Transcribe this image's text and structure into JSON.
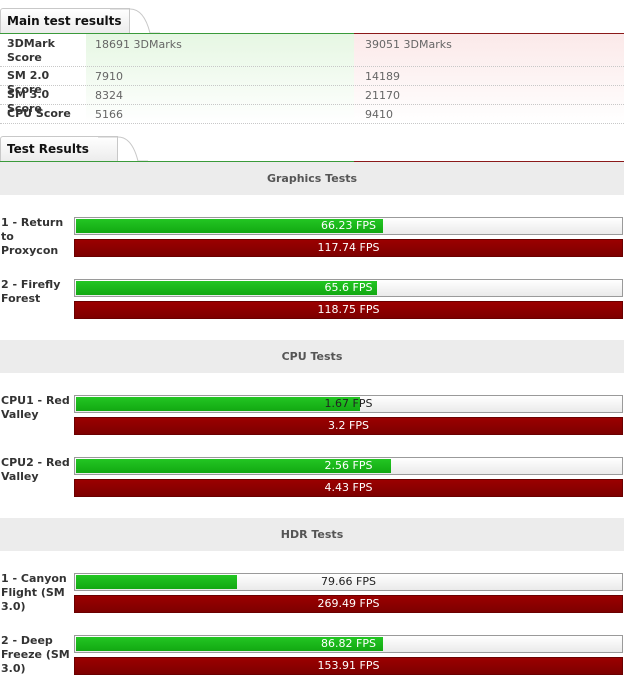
{
  "main": {
    "title": "Main test results",
    "rows": [
      {
        "label": "3DMark Score",
        "label_line1": "3DMark",
        "label_line2": "Score",
        "value_a": "18691 3DMarks",
        "value_b": "39051 3DMarks"
      },
      {
        "label": "SM 2.0 Score",
        "value_a": "7910",
        "value_b": "14189"
      },
      {
        "label": "SM 3.0 Score",
        "value_a": "8324",
        "value_b": "21170"
      },
      {
        "label": "CPU Score",
        "value_a": "5166",
        "value_b": "9410"
      }
    ]
  },
  "results": {
    "title": "Test Results",
    "sections": [
      {
        "name": "Graphics Tests",
        "tests": [
          {
            "label_lines": [
              "1 - Return to",
              "Proxycon"
            ],
            "a_text": "66.23 FPS",
            "a_fraction": 0.5625,
            "b_text": "117.74 FPS"
          },
          {
            "label_lines": [
              "2 - Firefly",
              "Forest"
            ],
            "a_text": "65.6 FPS",
            "a_fraction": 0.5524,
            "b_text": "118.75 FPS"
          }
        ]
      },
      {
        "name": "CPU Tests",
        "tests": [
          {
            "label_lines": [
              "CPU1 - Red",
              "Valley"
            ],
            "a_text": "1.67 FPS",
            "a_fraction": 0.5219,
            "b_text": "3.2 FPS"
          },
          {
            "label_lines": [
              "CPU2 - Red",
              "Valley"
            ],
            "a_text": "2.56 FPS",
            "a_fraction": 0.5779,
            "b_text": "4.43 FPS"
          }
        ]
      },
      {
        "name": "HDR Tests",
        "tests": [
          {
            "label_lines": [
              "1 - Canyon",
              "Flight (SM",
              "3.0)"
            ],
            "a_text": "79.66 FPS",
            "a_fraction": 0.2956,
            "b_text": "269.49 FPS"
          },
          {
            "label_lines": [
              "2 - Deep",
              "Freeze (SM",
              "3.0)"
            ],
            "a_text": "86.82 FPS",
            "a_fraction": 0.5641,
            "b_text": "153.91 FPS"
          }
        ]
      }
    ]
  },
  "colors": {
    "system_a": "#1db81d",
    "system_b": "#8b0000"
  }
}
